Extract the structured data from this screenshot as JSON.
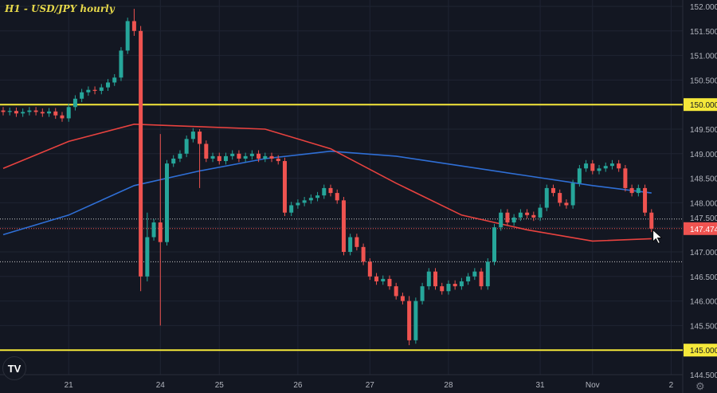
{
  "header": {
    "title": "H1 - USD/JPY hourly"
  },
  "logo_text": "TV",
  "settings_icon": "gear-icon",
  "colors": {
    "background": "#131722",
    "grid": "#1f2433",
    "up": "#26a69a",
    "down": "#ef5350",
    "level": "#f5e83a",
    "ma_blue": "#2f6fd6",
    "ma_red": "#e8423f",
    "axis_text": "#b2b5be"
  },
  "chart_data": {
    "type": "candlestick",
    "title": "H1 - USD/JPY hourly",
    "ylim": [
      144.4,
      152.1
    ],
    "y_ticks": [
      "144.500",
      "145.000",
      "145.500",
      "146.000",
      "146.500",
      "147.000",
      "147.500",
      "148.000",
      "148.500",
      "149.000",
      "149.500",
      "150.000",
      "150.500",
      "151.000",
      "151.500",
      "152.000"
    ],
    "x_ticks": [
      {
        "label": "21",
        "index": 10
      },
      {
        "label": "24",
        "index": 24
      },
      {
        "label": "25",
        "index": 33
      },
      {
        "label": "26",
        "index": 45
      },
      {
        "label": "27",
        "index": 56
      },
      {
        "label": "28",
        "index": 68
      },
      {
        "label": "31",
        "index": 82
      },
      {
        "label": "Nov",
        "index": 90
      },
      {
        "label": "2",
        "index": 102
      }
    ],
    "closes": [
      149.85,
      149.87,
      149.82,
      149.85,
      149.88,
      149.85,
      149.82,
      149.86,
      149.78,
      149.72,
      149.95,
      150.12,
      150.25,
      150.3,
      150.28,
      150.35,
      150.45,
      150.55,
      151.1,
      151.7,
      151.5,
      146.5,
      147.3,
      147.6,
      147.2,
      148.8,
      148.9,
      149.0,
      149.3,
      149.45,
      149.2,
      148.9,
      148.95,
      148.85,
      148.95,
      149.0,
      148.9,
      148.95,
      149.0,
      148.9,
      148.95,
      148.9,
      148.85,
      147.8,
      147.95,
      148.0,
      148.05,
      148.1,
      148.15,
      148.3,
      148.2,
      148.05,
      147.0,
      147.3,
      147.1,
      146.8,
      146.5,
      146.4,
      146.45,
      146.3,
      146.1,
      146.0,
      145.2,
      146.0,
      146.3,
      146.6,
      146.3,
      146.2,
      146.35,
      146.3,
      146.4,
      146.5,
      146.6,
      146.3,
      146.8,
      147.5,
      147.8,
      147.6,
      147.7,
      147.8,
      147.75,
      147.7,
      147.9,
      148.3,
      148.2,
      148.0,
      147.95,
      148.4,
      148.7,
      148.8,
      148.65,
      148.7,
      148.75,
      148.8,
      148.7,
      148.3,
      148.2,
      148.3,
      147.8,
      147.474
    ],
    "wicks": {
      "20": [
        151.95,
        151.4
      ],
      "21": [
        151.6,
        146.2
      ],
      "22": [
        147.8,
        146.4
      ],
      "24": [
        149.4,
        145.5
      ],
      "30": [
        149.5,
        148.3
      ],
      "62": [
        146.1,
        145.1
      ]
    },
    "moving_averages": [
      {
        "color": "#2f6fd6",
        "index": [
          0,
          10,
          20,
          30,
          40,
          50,
          60,
          70,
          80,
          90,
          99
        ],
        "values": [
          147.35,
          147.75,
          148.35,
          148.65,
          148.9,
          149.05,
          148.95,
          148.75,
          148.55,
          148.35,
          148.2
        ]
      },
      {
        "color": "#e8423f",
        "index": [
          0,
          10,
          20,
          30,
          40,
          50,
          60,
          70,
          80,
          90,
          99
        ],
        "values": [
          148.7,
          149.25,
          149.6,
          149.55,
          149.5,
          149.1,
          148.4,
          147.75,
          147.45,
          147.22,
          147.27
        ]
      }
    ],
    "levels": [
      {
        "value": 150.0,
        "label": "150.000"
      },
      {
        "value": 145.0,
        "label": "145.000"
      }
    ],
    "dotted_lines": [
      147.67,
      146.8
    ],
    "last_price": {
      "value": 147.474,
      "label": "147.474"
    }
  }
}
